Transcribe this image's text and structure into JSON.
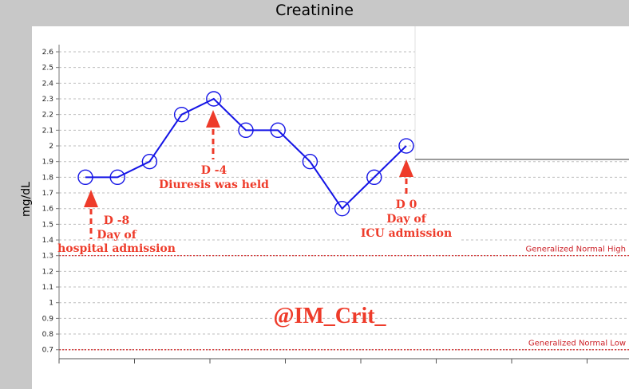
{
  "title": "Creatinine",
  "colors": {
    "line": "#1414e6",
    "reference": "#d42020",
    "annotation": "#ee3b2a",
    "grid": "#bdbdbd"
  },
  "chart_data": {
    "type": "line",
    "title": "Creatinine",
    "ylabel": "mg/dL",
    "xlabel": "",
    "ylim": [
      0.6,
      2.65
    ],
    "yticks": [
      2.6,
      2.5,
      2.4,
      2.3,
      2.2,
      2.1,
      2,
      1.9,
      1.8,
      1.7,
      1.6,
      1.5,
      1.4,
      1.3,
      1.2,
      1.1,
      1,
      0.9,
      0.8,
      0.7
    ],
    "grid": true,
    "series": [
      {
        "values": [
          1.8,
          1.8,
          1.9,
          2.2,
          2.3,
          2.1,
          2.1,
          1.9,
          1.6,
          1.8,
          2.0
        ]
      }
    ],
    "reference_lines": [
      {
        "label": "Generalized Normal High",
        "value": 1.3
      },
      {
        "label": "Generalized Normal Low",
        "value": 0.7
      }
    ],
    "annotations": [
      {
        "lines": [
          "D -8",
          "Day of",
          "hospital admission"
        ],
        "point_index": 0
      },
      {
        "lines": [
          "D -4",
          "Diuresis was held"
        ],
        "point_index": 4
      },
      {
        "lines": [
          "D 0",
          "Day of",
          "ICU admission"
        ],
        "point_index": 10
      }
    ],
    "watermark": "@IM_Crit_"
  }
}
